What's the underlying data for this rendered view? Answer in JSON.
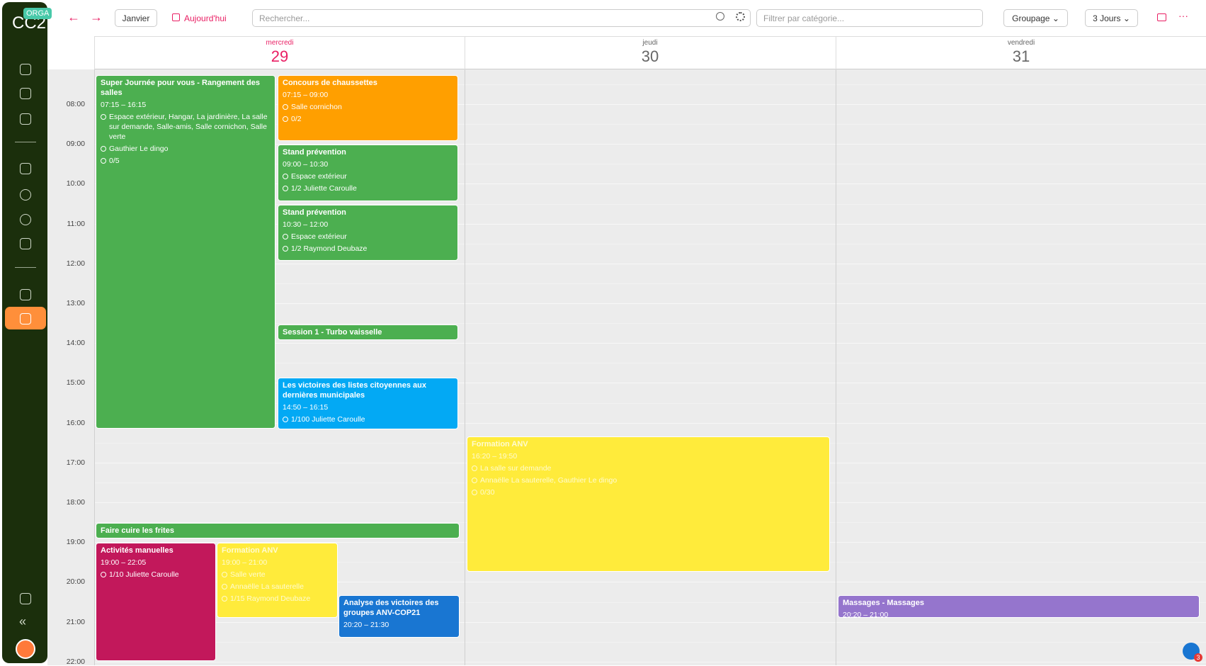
{
  "sidebar": {
    "logo": "CC2",
    "badge": "ORGA"
  },
  "toolbar": {
    "month": "Janvier",
    "today": "Aujourd'hui",
    "search": "Rechercher...",
    "filter": "Filtrer par catégorie...",
    "grouping": "Groupage",
    "view": "3 Jours"
  },
  "days": [
    {
      "weekday": "mercredi",
      "date": "29"
    },
    {
      "weekday": "jeudi",
      "date": "30"
    },
    {
      "weekday": "vendredi",
      "date": "31"
    }
  ],
  "hours": [
    "08:00",
    "09:00",
    "10:00",
    "11:00",
    "12:00",
    "13:00",
    "14:00",
    "15:00",
    "16:00",
    "17:00",
    "18:00",
    "19:00",
    "20:00",
    "21:00",
    "22:00"
  ],
  "events": [
    {
      "title": "Super Journée pour vous - Rangement des salles",
      "time": "07:15 – 16:15",
      "location": "Espace extérieur, Hangar, La jardinière, La salle sur demande, Salle-amis, Salle cornichon, Salle verte",
      "people": "Gauthier Le dingo",
      "capacity": "0/5"
    },
    {
      "title": "Concours de chaussettes",
      "time": "07:15 – 09:00",
      "location": "Salle cornichon",
      "capacity": "0/2"
    },
    {
      "title": "Stand prévention",
      "time": "09:00 – 10:30",
      "location": "Espace extérieur",
      "capacity": "1/2 Juliette Caroulle"
    },
    {
      "title": "Stand prévention",
      "time": "10:30 – 12:00",
      "location": "Espace extérieur",
      "capacity": "1/2 Raymond Deubaze"
    },
    {
      "title": "Session 1 - Turbo vaisselle"
    },
    {
      "title": "Les victoires des listes citoyennes aux dernières municipales",
      "time": "14:50 – 16:15",
      "capacity": "1/100 Juliette Caroulle"
    },
    {
      "title": "Formation ANV",
      "time": "16:20 – 19:50",
      "location": "La salle sur demande",
      "people": "Annaëlle La sauterelle, Gauthier Le dingo",
      "capacity": "0/30"
    },
    {
      "title": "Faire cuire les frites"
    },
    {
      "title": "Activités manuelles",
      "time": "19:00 – 22:05",
      "capacity": "1/10 Juliette Caroulle"
    },
    {
      "title": "Formation ANV",
      "time": "19:00 – 21:00",
      "location": "Salle verte",
      "people": "Annaëlle La sauterelle",
      "capacity": "1/15 Raymond Deubaze"
    },
    {
      "title": "Analyse des victoires des groupes ANV-COP21",
      "time": "20:20 – 21:30"
    },
    {
      "title": "Massages - Massages",
      "time": "20:20 – 21:00"
    }
  ],
  "notifications": "3"
}
